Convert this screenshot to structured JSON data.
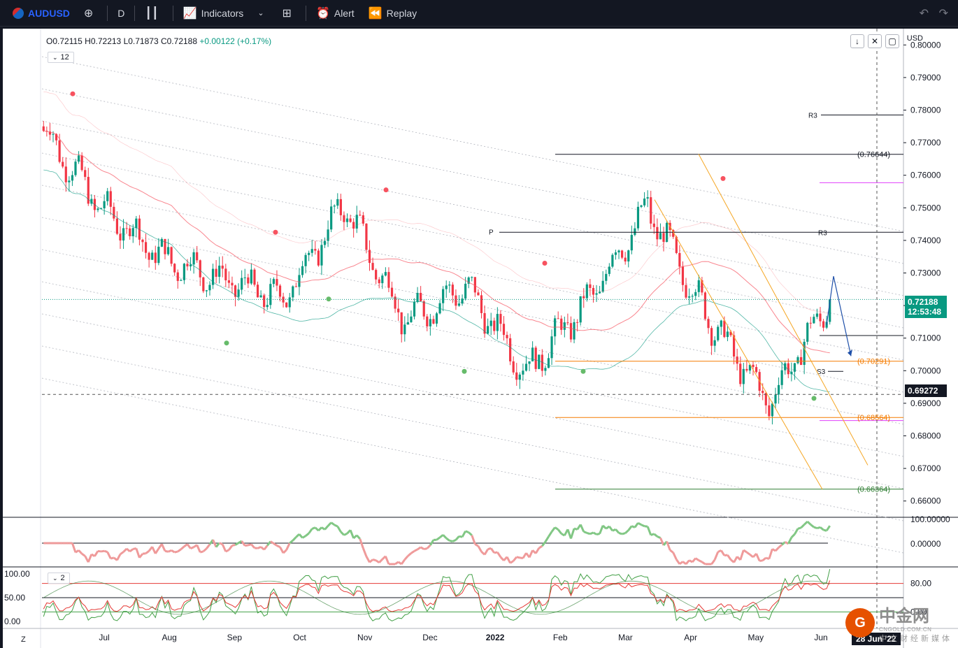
{
  "toolbar": {
    "symbol": "AUDUSD",
    "interval": "D",
    "indicators_label": "Indicators",
    "alert_label": "Alert",
    "replay_label": "Replay"
  },
  "legend": {
    "open": "O0.72115",
    "high": "H0.72213",
    "low": "L0.71873",
    "close": "C0.72188",
    "change": "+0.00122 (+0.17%)",
    "indicator_badge_1": "12",
    "indicator_badge_2": "2"
  },
  "price_axis": {
    "currency": "USD",
    "ticks": [
      "0.80000",
      "0.79000",
      "0.78000",
      "0.77000",
      "0.76000",
      "0.75000",
      "0.74000",
      "0.73000",
      "0.72000",
      "0.71000",
      "0.70000",
      "0.69000",
      "0.68000",
      "0.67000",
      "0.66000"
    ],
    "last_price": "0.72188",
    "countdown": "12:53:48",
    "crosshair_price": "0.69272",
    "osc_ticks": [
      "100.00000",
      "0.00000"
    ],
    "stoch_right_ticks": [
      "80.00",
      "0.00"
    ],
    "stoch_left_ticks": [
      "100.00",
      "50.00",
      "0.00"
    ]
  },
  "time_axis": {
    "labels": [
      "Jul",
      "Aug",
      "Sep",
      "Oct",
      "Nov",
      "Dec",
      "2022",
      "Feb",
      "Mar",
      "Apr",
      "May",
      "Jun"
    ],
    "crosshair_date": "28 Jun '22",
    "z_label": "Z"
  },
  "annotations": {
    "r3_top": "R3",
    "r3_mid": "R3",
    "p": "P",
    "s3": "S3",
    "fib_high": "(0.76644)",
    "fib_mid": "(0.70291)",
    "fib_low1": "(0.68564)",
    "fib_low2": "(0.66364)"
  },
  "watermark": {
    "brand": "中金网",
    "url": "CNGOLD.COM.CN",
    "sub": "中文财经新媒体"
  },
  "colors": {
    "up": "#089981",
    "down": "#f23645",
    "accent": "#2962ff"
  },
  "chart_data": {
    "type": "candlestick",
    "symbol": "AUDUSD",
    "timeframe": "D",
    "ylim": [
      0.655,
      0.805
    ],
    "months": [
      "Jul",
      "Aug",
      "Sep",
      "Oct",
      "Nov",
      "Dec",
      "2022",
      "Feb",
      "Mar",
      "Apr",
      "May",
      "Jun"
    ],
    "monthly_path": [
      {
        "m": "Jun",
        "open": 0.775,
        "close": 0.75
      },
      {
        "m": "Jul",
        "open": 0.75,
        "close": 0.735
      },
      {
        "m": "Aug",
        "open": 0.735,
        "close": 0.728
      },
      {
        "m": "Sep",
        "open": 0.728,
        "close": 0.722
      },
      {
        "m": "Oct",
        "open": 0.722,
        "close": 0.751
      },
      {
        "m": "Nov",
        "open": 0.751,
        "close": 0.715
      },
      {
        "m": "Dec",
        "open": 0.715,
        "close": 0.726
      },
      {
        "m": "Jan",
        "open": 0.726,
        "close": 0.7
      },
      {
        "m": "Feb",
        "open": 0.7,
        "close": 0.721
      },
      {
        "m": "Mar",
        "open": 0.721,
        "close": 0.75
      },
      {
        "m": "Apr",
        "open": 0.75,
        "close": 0.716
      },
      {
        "m": "May",
        "open": 0.716,
        "close": 0.69
      },
      {
        "m": "Jun",
        "open": 0.69,
        "close": 0.7219
      }
    ],
    "levels": {
      "fib_high": 0.76644,
      "fib_mid": 0.70291,
      "fib_low1": 0.68564,
      "fib_low2": 0.66364,
      "pivot": 0.7425,
      "r3_upper": 0.7785,
      "r3_lower": 0.7425,
      "s3": 0.6998,
      "last": 0.72188,
      "crosshair": 0.69272
    }
  }
}
